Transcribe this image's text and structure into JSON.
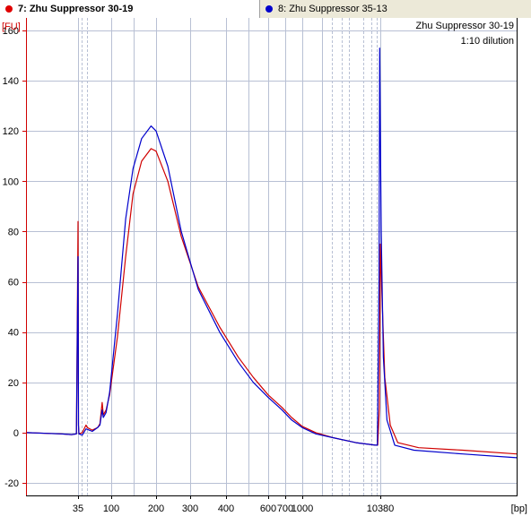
{
  "tabs": [
    {
      "label": "7: Zhu Suppressor 30-19",
      "dot_color": "#e00000",
      "active": true
    },
    {
      "label": "8: Zhu Suppressor 35-13",
      "dot_color": "#0000cc",
      "active": false
    }
  ],
  "chart_data": {
    "type": "line",
    "x_scale": "log",
    "xlabel": "[bp]",
    "ylabel": "[FU]",
    "ylim": [
      -25,
      165
    ],
    "y_ticks": [
      -20,
      0,
      20,
      40,
      60,
      80,
      100,
      120,
      140,
      160
    ],
    "x_tick_labels": [
      "35",
      "100",
      "200",
      "300",
      "400",
      "600",
      "700",
      "1000",
      "10380"
    ],
    "annotations": [
      "Zhu Suppressor 30-19",
      "1:10 dilution"
    ],
    "grid": true,
    "series": [
      {
        "name": "7: Zhu Suppressor 30-19",
        "color": "#d00000",
        "points": [
          [
            22,
            0
          ],
          [
            30,
            -0.5
          ],
          [
            33,
            -0.8
          ],
          [
            34.5,
            -0.5
          ],
          [
            35,
            84
          ],
          [
            35.5,
            3
          ],
          [
            36,
            -0.5
          ],
          [
            40,
            0
          ],
          [
            45,
            3
          ],
          [
            47,
            2
          ],
          [
            55,
            1
          ],
          [
            65,
            2
          ],
          [
            70,
            3.5
          ],
          [
            75,
            12
          ],
          [
            78,
            7
          ],
          [
            85,
            9
          ],
          [
            95,
            15
          ],
          [
            110,
            38
          ],
          [
            125,
            70
          ],
          [
            140,
            95
          ],
          [
            160,
            108
          ],
          [
            185,
            113
          ],
          [
            200,
            112
          ],
          [
            230,
            100
          ],
          [
            270,
            78
          ],
          [
            320,
            58
          ],
          [
            380,
            42
          ],
          [
            450,
            30
          ],
          [
            520,
            22
          ],
          [
            600,
            15
          ],
          [
            680,
            10
          ],
          [
            800,
            6
          ],
          [
            1000,
            2.5
          ],
          [
            1500,
            0
          ],
          [
            2500,
            -2
          ],
          [
            5000,
            -4
          ],
          [
            9000,
            -5
          ],
          [
            9600,
            -5
          ],
          [
            10100,
            10
          ],
          [
            10380,
            75
          ],
          [
            10600,
            55
          ],
          [
            11000,
            22
          ],
          [
            11800,
            3
          ],
          [
            13000,
            -4
          ],
          [
            17000,
            -6
          ],
          [
            30000,
            -7
          ],
          [
            60000,
            -8.5
          ]
        ]
      },
      {
        "name": "8: Zhu Suppressor 35-13",
        "color": "#0000cc",
        "points": [
          [
            22,
            0
          ],
          [
            30,
            -0.5
          ],
          [
            33,
            -0.8
          ],
          [
            34.5,
            -0.5
          ],
          [
            35,
            70
          ],
          [
            35.5,
            3
          ],
          [
            36,
            -0.5
          ],
          [
            40,
            -1
          ],
          [
            45,
            1.5
          ],
          [
            55,
            0.5
          ],
          [
            65,
            2
          ],
          [
            70,
            3
          ],
          [
            75,
            9
          ],
          [
            78,
            6
          ],
          [
            85,
            8
          ],
          [
            95,
            16
          ],
          [
            110,
            47
          ],
          [
            125,
            85
          ],
          [
            140,
            105
          ],
          [
            160,
            117
          ],
          [
            185,
            122
          ],
          [
            200,
            120
          ],
          [
            230,
            106
          ],
          [
            270,
            80
          ],
          [
            320,
            57
          ],
          [
            380,
            40
          ],
          [
            450,
            28
          ],
          [
            520,
            20
          ],
          [
            600,
            14
          ],
          [
            680,
            9
          ],
          [
            800,
            5
          ],
          [
            1000,
            2
          ],
          [
            1500,
            -0.5
          ],
          [
            2500,
            -2
          ],
          [
            5000,
            -4
          ],
          [
            9000,
            -5
          ],
          [
            9500,
            -5
          ],
          [
            10000,
            60
          ],
          [
            10200,
            153
          ],
          [
            10500,
            80
          ],
          [
            10800,
            30
          ],
          [
            11300,
            5
          ],
          [
            12500,
            -5
          ],
          [
            16000,
            -7
          ],
          [
            30000,
            -8.5
          ],
          [
            60000,
            -10
          ]
        ]
      }
    ]
  }
}
